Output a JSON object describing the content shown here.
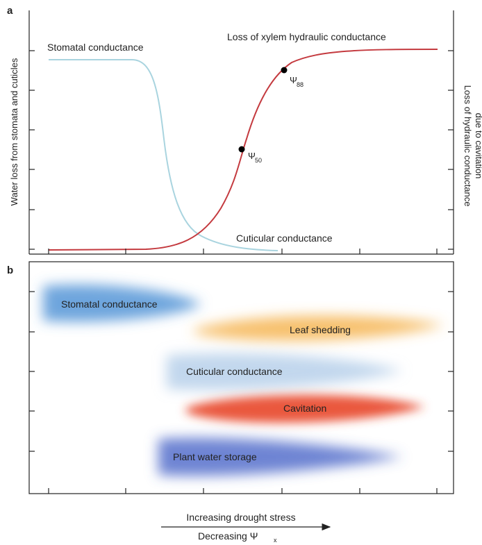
{
  "panel_a": {
    "panel_label": "a",
    "left_axis_label": "Water loss from stomata and cuticles",
    "right_axis_label_line1": "Loss of hydraulic conductance",
    "right_axis_label_line2": "due to cavitation",
    "curve_labels": {
      "stomatal": "Stomatal conductance",
      "xylem": "Loss of xylem hydraulic conductance",
      "cuticular": "Cuticular conductance"
    },
    "points": {
      "psi50_symbol": "Ψ",
      "psi50_sub": "50",
      "psi88_symbol": "Ψ",
      "psi88_sub": "88"
    },
    "colors": {
      "stomatal": "#a9d4df",
      "xylem": "#c43a3f",
      "point": "#000000"
    }
  },
  "panel_b": {
    "panel_label": "b",
    "bands": [
      {
        "label": "Stomatal conductance",
        "color": "#4a8fd4"
      },
      {
        "label": "Leaf shedding",
        "color": "#f5b24a"
      },
      {
        "label": "Cuticular conductance",
        "color": "#a8c6e6"
      },
      {
        "label": "Cavitation",
        "color": "#e8452a"
      },
      {
        "label": "Plant water storage",
        "color": "#4a66c8"
      }
    ]
  },
  "x_axis": {
    "line1": "Increasing drought stress",
    "line2_main": "Decreasing Ψ",
    "line2_sub": "x"
  }
}
